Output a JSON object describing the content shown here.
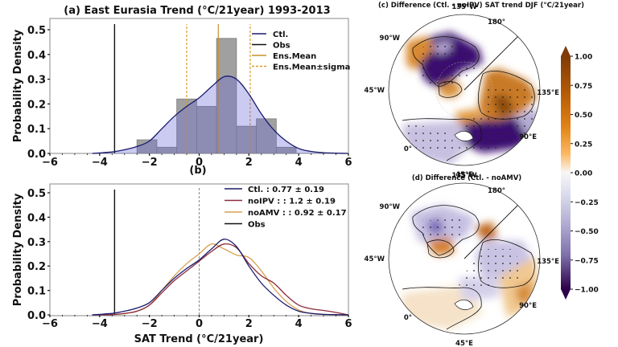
{
  "chart_data": [
    {
      "id": "a",
      "type": "bar",
      "title": "(a) East Eurasia Trend (°C/21year) 1993-2013",
      "xlabel": "",
      "ylabel": "Probability Density",
      "xlim": [
        -6,
        6
      ],
      "ylim": [
        0,
        0.53
      ],
      "xticks": [
        "−6",
        "−4",
        "−2",
        "0",
        "2",
        "4",
        "6"
      ],
      "xtick_values": [
        -6,
        -4,
        -2,
        0,
        2,
        4,
        6
      ],
      "yticks": [
        "0.0",
        "0.1",
        "0.2",
        "0.3",
        "0.4",
        "0.5"
      ],
      "ytick_values": [
        0,
        0.1,
        0.2,
        0.3,
        0.4,
        0.5
      ],
      "histogram": {
        "bin_edges": [
          -2.5,
          -1.7,
          -0.9,
          -0.1,
          0.7,
          1.5,
          2.3,
          3.1,
          3.9
        ],
        "density": [
          0.055,
          0.025,
          0.22,
          0.19,
          0.465,
          0.11,
          0.14,
          0.025
        ],
        "color": "#a0a0a0"
      },
      "kde": {
        "name": "Ctl.",
        "color": "#1a1a6e",
        "x": [
          -4.3,
          -3.5,
          -3,
          -2.5,
          -2,
          -1.5,
          -1,
          -0.5,
          0,
          0.5,
          1,
          1.5,
          2,
          2.5,
          3,
          3.5,
          4,
          4.5,
          5,
          5.5,
          6
        ],
        "y": [
          0.0,
          0.006,
          0.015,
          0.028,
          0.05,
          0.1,
          0.15,
          0.19,
          0.225,
          0.27,
          0.31,
          0.3,
          0.24,
          0.16,
          0.095,
          0.05,
          0.02,
          0.008,
          0.003,
          0.001,
          0.0
        ]
      },
      "vlines": [
        {
          "name": "Obs",
          "x": -3.4,
          "color": "#111111",
          "style": "solid"
        },
        {
          "name": "Ens.Mean",
          "x": 0.77,
          "color": "#c8902a",
          "style": "solid"
        },
        {
          "name": "Ens.Mean±sigma",
          "x": -0.5,
          "color": "#d99a2a",
          "style": "dashed"
        },
        {
          "name": "Ens.Mean±sigma",
          "x": 2.05,
          "color": "#d99a2a",
          "style": "dashed"
        }
      ],
      "legend": {
        "position": "top-right",
        "entries": [
          {
            "label": "Ctl.",
            "color": "#1a1a6e",
            "style": "solid"
          },
          {
            "label": "Obs",
            "color": "#111111",
            "style": "solid"
          },
          {
            "label": " Ens.Mean",
            "color": "#c8902a",
            "style": "solid"
          },
          {
            "label": "Ens.Mean±sigma",
            "color": "#d99a2a",
            "style": "dashed"
          }
        ]
      }
    },
    {
      "id": "b",
      "type": "line",
      "title": "(b)",
      "xlabel": "SAT Trend (°C/21year)",
      "ylabel": "Probability Density",
      "xlim": [
        -6,
        6
      ],
      "ylim": [
        0,
        0.53
      ],
      "xticks": [
        "−6",
        "−4",
        "−2",
        "0",
        "2",
        "4",
        "6"
      ],
      "xtick_values": [
        -6,
        -4,
        -2,
        0,
        2,
        4,
        6
      ],
      "yticks": [
        "0.0",
        "0.1",
        "0.2",
        "0.3",
        "0.4",
        "0.5"
      ],
      "ytick_values": [
        0,
        0.1,
        0.2,
        0.3,
        0.4,
        0.5
      ],
      "x": [
        -4.3,
        -3.5,
        -3,
        -2.5,
        -2,
        -1.5,
        -1,
        -0.5,
        0,
        0.5,
        1,
        1.5,
        2,
        2.5,
        3,
        3.5,
        4,
        4.5,
        5,
        5.5,
        6
      ],
      "series": [
        {
          "name": "Ctl. : 0.77 ± 0.19",
          "color": "#1a1a6e",
          "values": [
            0.0,
            0.006,
            0.015,
            0.028,
            0.05,
            0.1,
            0.15,
            0.19,
            0.225,
            0.27,
            0.31,
            0.28,
            0.2,
            0.13,
            0.08,
            0.04,
            0.015,
            0.006,
            0.002,
            0.001,
            0.0
          ]
        },
        {
          "name": "noIPV : : 1.2 ± 0.19",
          "color": "#8b2a3a",
          "values": [
            0.0,
            0.001,
            0.006,
            0.015,
            0.04,
            0.09,
            0.14,
            0.18,
            0.22,
            0.26,
            0.29,
            0.275,
            0.21,
            0.16,
            0.13,
            0.08,
            0.04,
            0.025,
            0.018,
            0.01,
            0.0
          ]
        },
        {
          "name": "noAMV : : 0.92 ± 0.17",
          "color": "#d8a050",
          "values": [
            0.0,
            0.001,
            0.005,
            0.015,
            0.04,
            0.1,
            0.16,
            0.21,
            0.25,
            0.29,
            0.27,
            0.245,
            0.235,
            0.18,
            0.11,
            0.055,
            0.02,
            0.006,
            0.002,
            0.0,
            0.0
          ]
        }
      ],
      "vlines": [
        {
          "name": "Obs",
          "x": -3.4,
          "color": "#111111",
          "style": "solid"
        },
        {
          "name": "zero",
          "x": 0,
          "color": "#888888",
          "style": "dashed"
        }
      ],
      "legend": {
        "position": "top-right",
        "entries": [
          {
            "label": "Ctl. : 0.77 ± 0.19",
            "color": "#1a1a6e"
          },
          {
            "label": "noIPV : : 1.2 ± 0.19",
            "color": "#8b2a3a"
          },
          {
            "label": "noAMV : : 0.92 ± 0.17",
            "color": "#d8a050"
          },
          {
            "label": " Obs",
            "color": "#111111"
          }
        ]
      }
    },
    {
      "id": "c",
      "type": "heatmap",
      "title": "(c) Difference (Ctl. - noIPV) SAT trend DJF (°C/21year)",
      "projection": "north-polar-stereographic",
      "lon_labels": [
        "135°W",
        "180°",
        "90°W",
        "135°E",
        "45°W",
        "90°E",
        "0°",
        "45°E"
      ],
      "regions": [
        {
          "name": "North America (east/Canada)",
          "value": -0.9
        },
        {
          "name": "Alaska/western Canada",
          "value": 0.6
        },
        {
          "name": "Greenland",
          "value": 0.5
        },
        {
          "name": "East Siberia / East Asia",
          "value": 0.7
        },
        {
          "name": "Central Eurasia",
          "value": -0.85
        },
        {
          "name": "Europe / North Africa",
          "value": -0.3
        }
      ]
    },
    {
      "id": "d",
      "type": "heatmap",
      "title": "(d) Difference (Ctl. - noAMV)",
      "projection": "north-polar-stereographic",
      "lon_labels": [
        "135°W",
        "180°",
        "90°W",
        "135°E",
        "45°W",
        "90°E",
        "0°",
        "45°E"
      ],
      "regions": [
        {
          "name": "North America",
          "value": -0.3
        },
        {
          "name": "Alaska",
          "value": 0.6
        },
        {
          "name": "Greenland",
          "value": 0.55
        },
        {
          "name": "Siberia",
          "value": -0.3
        },
        {
          "name": "East Asia",
          "value": 0.4
        },
        {
          "name": "Europe / North Africa",
          "value": 0.15
        }
      ]
    }
  ],
  "colorbar": {
    "ticks": [
      "1.00",
      "0.75",
      "0.50",
      "0.25",
      "0.00",
      "−0.25",
      "−0.50",
      "−0.75",
      "−1.00"
    ],
    "tick_values": [
      1.0,
      0.75,
      0.5,
      0.25,
      0.0,
      -0.25,
      -0.5,
      -0.75,
      -1.0
    ],
    "range": [
      -1.0,
      1.0
    ],
    "colormap": "PuOr_r",
    "colors": {
      "max": "#7f3b08",
      "high": "#d08020",
      "mid": "#f7f7f7",
      "low": "#8073ac",
      "min": "#2d004b"
    }
  }
}
